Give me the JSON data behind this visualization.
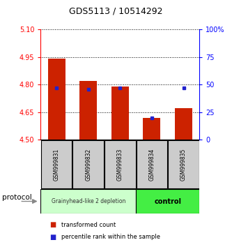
{
  "title": "GDS5113 / 10514292",
  "samples": [
    "GSM999831",
    "GSM999832",
    "GSM999833",
    "GSM999834",
    "GSM999835"
  ],
  "bar_bottoms": [
    4.5,
    4.5,
    4.5,
    4.5,
    4.5
  ],
  "bar_tops": [
    4.94,
    4.82,
    4.79,
    4.62,
    4.67
  ],
  "percentile_ranks": [
    47,
    46,
    47,
    20,
    47
  ],
  "ylim_left": [
    4.5,
    5.1
  ],
  "ylim_right": [
    0,
    100
  ],
  "yticks_left": [
    4.5,
    4.65,
    4.8,
    4.95,
    5.1
  ],
  "yticks_right": [
    0,
    25,
    50,
    75,
    100
  ],
  "ytick_labels_right": [
    "0",
    "25",
    "50",
    "75",
    "100%"
  ],
  "bar_color": "#cc2200",
  "blue_color": "#2222cc",
  "group1_label": "Grainyhead-like 2 depletion",
  "group2_label": "control",
  "group1_color": "#ccffcc",
  "group2_color": "#44ee44",
  "protocol_label": "protocol",
  "legend_red": "transformed count",
  "legend_blue": "percentile rank within the sample",
  "bar_width": 0.55,
  "bg_color": "#ffffff",
  "n_group1": 3,
  "n_group2": 2
}
